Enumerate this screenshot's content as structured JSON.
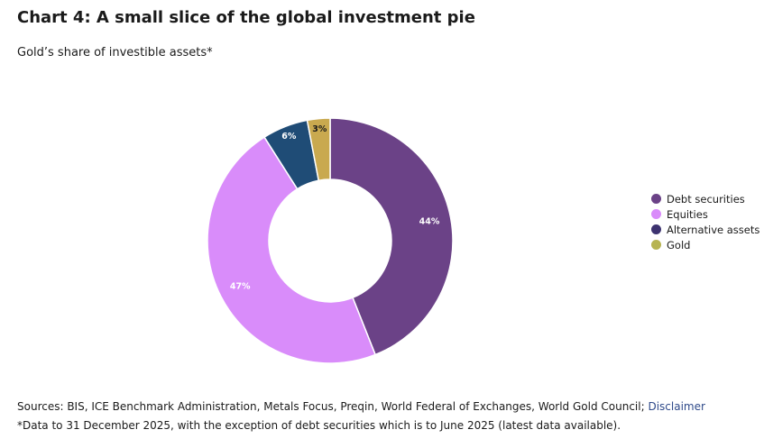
{
  "chart_data": {
    "type": "pie",
    "style": "donut",
    "title": "Chart 4: A small slice of the global investment pie",
    "subtitle": "Gold’s share of investible assets*",
    "slices": [
      {
        "name": "Debt securities",
        "value": 44,
        "label": "44%",
        "color": "#6b4287",
        "label_color": "#ffffff"
      },
      {
        "name": "Equities",
        "value": 47,
        "label": "47%",
        "color": "#d98cfa",
        "label_color": "#ffffff"
      },
      {
        "name": "Alternative assets",
        "value": 6,
        "label": "6%",
        "color": "#1f4c76",
        "label_color": "#ffffff"
      },
      {
        "name": "Gold",
        "value": 3,
        "label": "3%",
        "color": "#c9a94f",
        "label_color": "#1a1a1a"
      }
    ],
    "legend_position": "right",
    "legend_entries": [
      {
        "label": "Debt securities",
        "color": "#6b4287"
      },
      {
        "label": "Equities",
        "color": "#d98cfa"
      },
      {
        "label": "Alternative assets",
        "color": "#3d3370"
      },
      {
        "label": "Gold",
        "color": "#b7b451"
      }
    ]
  },
  "footer": {
    "sources_text": "Sources: BIS, ICE Benchmark Administration, Metals Focus, Preqin, World Federal of Exchanges, World Gold Council; ",
    "disclaimer_link": "Disclaimer",
    "note": "*Data to 31 December 2025, with the exception of debt securities which is to June 2025 (latest data available)."
  }
}
